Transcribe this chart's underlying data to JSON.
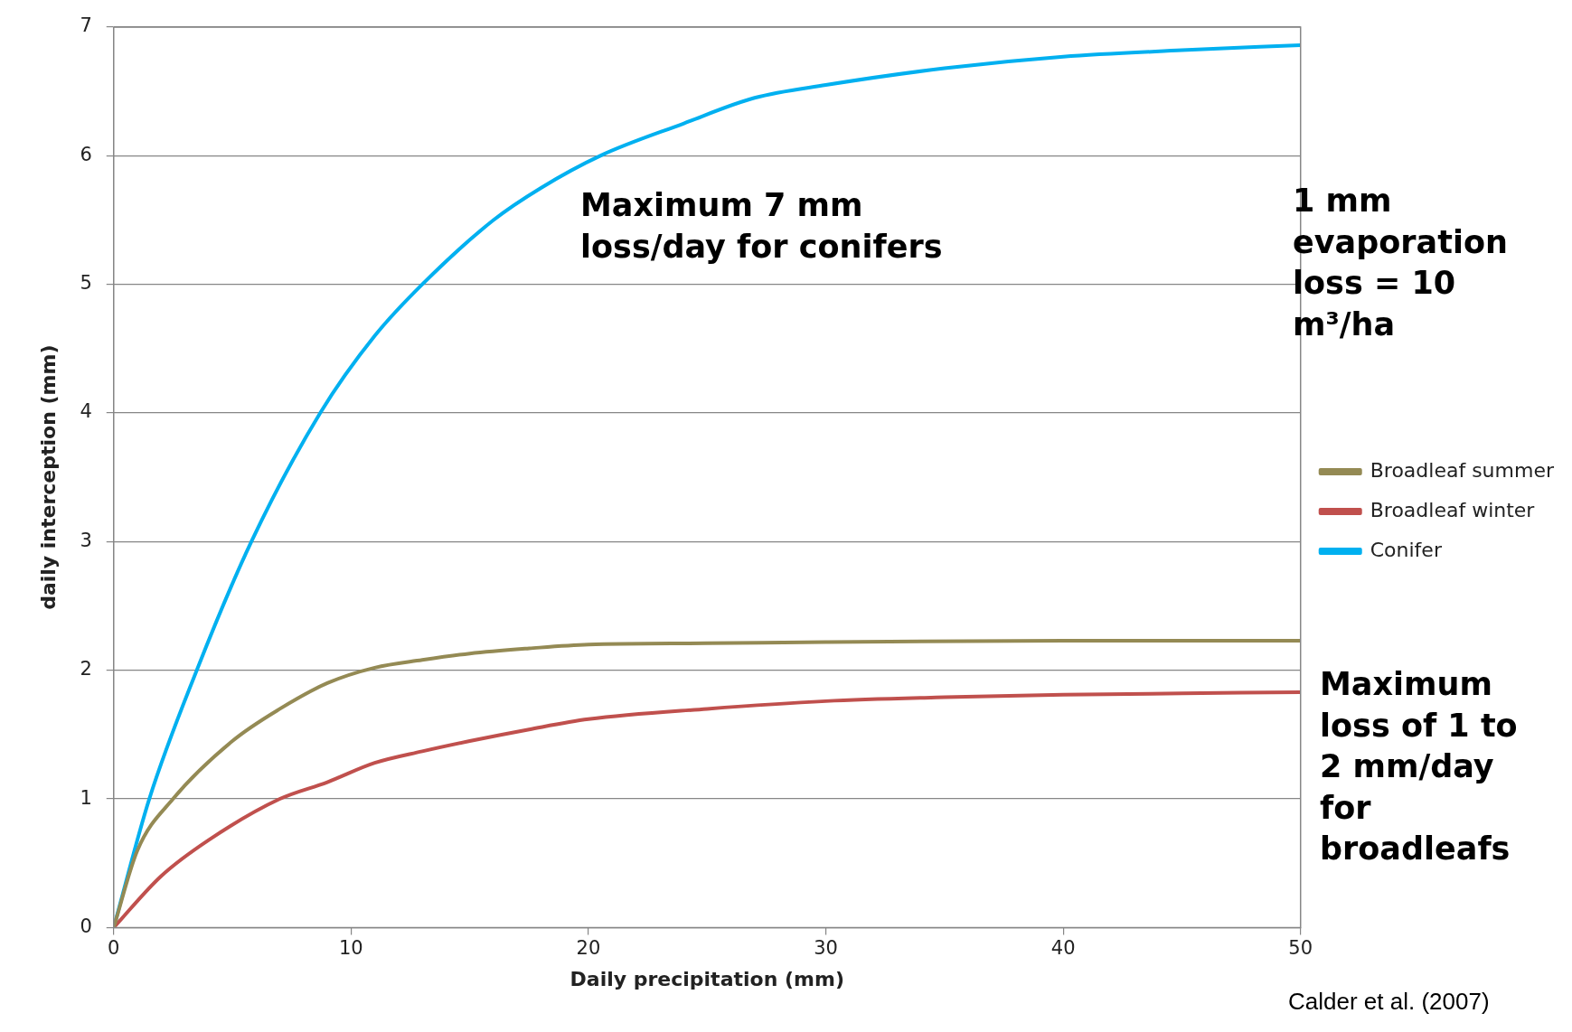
{
  "chart_data": {
    "type": "line",
    "xlabel": "Daily precipitation (mm)",
    "ylabel": "daily interception (mm)",
    "xlim": [
      0,
      50
    ],
    "xticks": [
      0,
      10,
      20,
      30,
      40,
      50
    ],
    "ylim": [
      0,
      7
    ],
    "yticks": [
      0,
      1,
      2,
      3,
      4,
      5,
      6,
      7
    ],
    "grid": "y",
    "legend": "right",
    "marker": "none",
    "line_style": "solid",
    "series": [
      {
        "name": "Broadleaf summer",
        "color": "#948a54",
        "x": [
          0,
          1,
          2.5,
          5,
          7,
          9,
          11,
          13,
          15,
          17.5,
          20,
          25,
          30,
          40,
          50
        ],
        "values": [
          0,
          0.6,
          1.0,
          1.45,
          1.7,
          1.9,
          2.02,
          2.08,
          2.13,
          2.17,
          2.2,
          2.21,
          2.22,
          2.23,
          2.23
        ]
      },
      {
        "name": "Broadleaf winter",
        "color": "#c0504d",
        "x": [
          0,
          2,
          4,
          7,
          9,
          11,
          13,
          15,
          17.5,
          20,
          25,
          30,
          35,
          40,
          45,
          50
        ],
        "values": [
          0,
          0.4,
          0.68,
          1.0,
          1.13,
          1.28,
          1.37,
          1.45,
          1.54,
          1.62,
          1.7,
          1.76,
          1.79,
          1.81,
          1.82,
          1.83
        ]
      },
      {
        "name": "Conifer",
        "color": "#00b0f0",
        "x": [
          0,
          1.5,
          3.5,
          5.8,
          8.7,
          11,
          13,
          16,
          18,
          20.5,
          24,
          27,
          30,
          35,
          40,
          45,
          50
        ],
        "values": [
          0,
          1,
          2,
          3,
          4,
          4.6,
          5,
          5.5,
          5.75,
          6,
          6.25,
          6.45,
          6.55,
          6.68,
          6.77,
          6.82,
          6.86
        ]
      }
    ],
    "annotations": [
      "Maximum 7 mm loss/day for conifers",
      "1 mm evaporation loss = 10 m³/ha",
      "Maximum loss of 1 to 2 mm/day for broadleafs",
      "Calder et al. (2007)"
    ]
  }
}
